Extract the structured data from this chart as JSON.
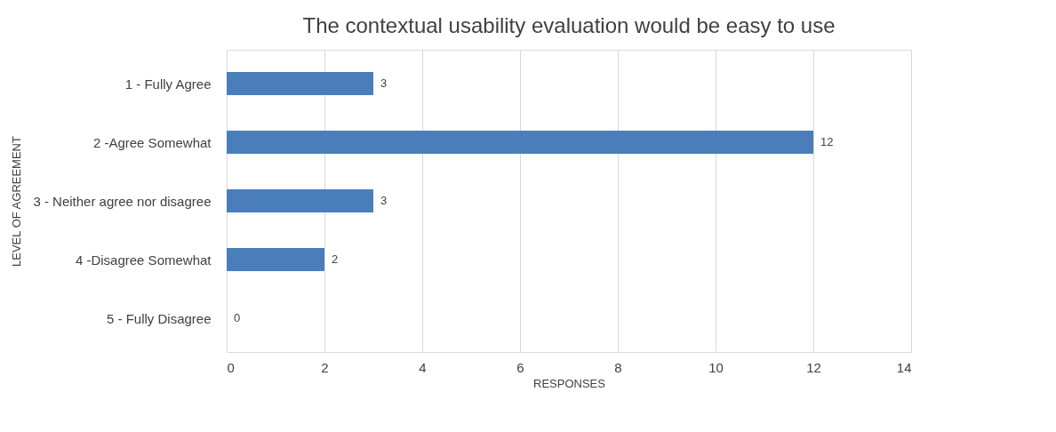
{
  "chart_data": {
    "type": "bar",
    "orientation": "horizontal",
    "title": "The contextual usability evaluation would be easy to use",
    "xlabel": "RESPONSES",
    "ylabel": "LEVEL OF AGREEMENT",
    "categories": [
      "1 - Fully Agree",
      "2 -Agree Somewhat",
      "3 - Neither agree nor disagree",
      "4 -Disagree Somewhat",
      "5 - Fully Disagree"
    ],
    "values": [
      3,
      12,
      3,
      2,
      0
    ],
    "color": "#4a7ebb",
    "xlim": [
      0,
      14
    ],
    "xticks": [
      0,
      2,
      4,
      6,
      8,
      10,
      12,
      14
    ],
    "grid": "x",
    "data_labels": true
  }
}
